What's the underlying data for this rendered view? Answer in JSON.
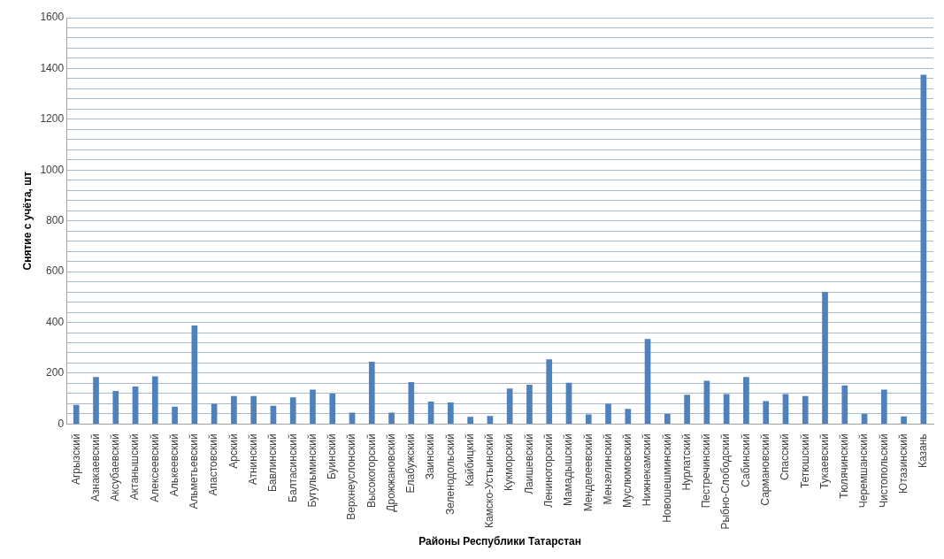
{
  "chart_data": {
    "type": "bar",
    "xlabel": "Районы Республики Татарстан",
    "ylabel": "Снятие с учёта, шт",
    "categories": [
      "Агрызский",
      "Азнакаевский",
      "Аксубаевский",
      "Актанышский",
      "Алексеевский",
      "Алькеевский",
      "Альметьевский",
      "Апастовский",
      "Арский",
      "Атнинский",
      "Бавлинский",
      "Балтасинский",
      "Бугульминский",
      "Буинский",
      "Верхнеуслонский",
      "Высокогорский",
      "Дрожжановский",
      "Елабужский",
      "Заинский",
      "Зеленодольский",
      "Кайбицкий",
      "Камско-Устьинский",
      "Кукморский",
      "Лаишевский",
      "Лениногорский",
      "Мамадышский",
      "Менделеевский",
      "Мензелинский",
      "Муслюмовский",
      "Нижнекамский",
      "Новошешминский",
      "Нурлатский",
      "Пестречинский",
      "Рыбно-Слободский",
      "Сабинский",
      "Сармановский",
      "Спасский",
      "Тетюшский",
      "Тукаевский",
      "Тюлячинский",
      "Черемшанский",
      "Чистопольский",
      "Ютазинский",
      "Казань"
    ],
    "values": [
      75,
      185,
      130,
      148,
      188,
      68,
      388,
      80,
      110,
      110,
      72,
      105,
      135,
      120,
      45,
      245,
      45,
      165,
      88,
      85,
      28,
      32,
      140,
      155,
      255,
      162,
      38,
      80,
      60,
      335,
      40,
      115,
      170,
      118,
      185,
      90,
      118,
      110,
      520,
      152,
      40,
      135,
      30,
      1375
    ],
    "color": "#4f81bd",
    "ylim": [
      0,
      1600
    ],
    "yticks": [
      0,
      {
        "value": 40,
        "label": null
      },
      {
        "value": 80,
        "label": null
      },
      {
        "value": 120,
        "label": null
      },
      {
        "value": 160,
        "label": null
      },
      200,
      {
        "value": 240,
        "label": null
      },
      {
        "value": 280,
        "label": null
      },
      {
        "value": 320,
        "label": null
      },
      {
        "value": 360,
        "label": null
      },
      400,
      {
        "value": 440,
        "label": null
      },
      {
        "value": 480,
        "label": null
      },
      {
        "value": 520,
        "label": null
      },
      {
        "value": 560,
        "label": null
      },
      600,
      {
        "value": 640,
        "label": null
      },
      {
        "value": 680,
        "label": null
      },
      {
        "value": 720,
        "label": null
      },
      {
        "value": 760,
        "label": null
      },
      800,
      {
        "value": 840,
        "label": null
      },
      {
        "value": 880,
        "label": null
      },
      {
        "value": 920,
        "label": null
      },
      {
        "value": 960,
        "label": null
      },
      1000,
      {
        "value": 1040,
        "label": null
      },
      {
        "value": 1080,
        "label": null
      },
      {
        "value": 1120,
        "label": null
      },
      {
        "value": 1160,
        "label": null
      },
      1200,
      {
        "value": 1240,
        "label": null
      },
      {
        "value": 1280,
        "label": null
      },
      {
        "value": 1320,
        "label": null
      },
      {
        "value": 1360,
        "label": null
      },
      1400,
      {
        "value": 1440,
        "label": null
      },
      {
        "value": 1480,
        "label": null
      },
      {
        "value": 1520,
        "label": null
      },
      {
        "value": 1560,
        "label": null
      },
      1600
    ],
    "grid": "y",
    "legend": false
  }
}
